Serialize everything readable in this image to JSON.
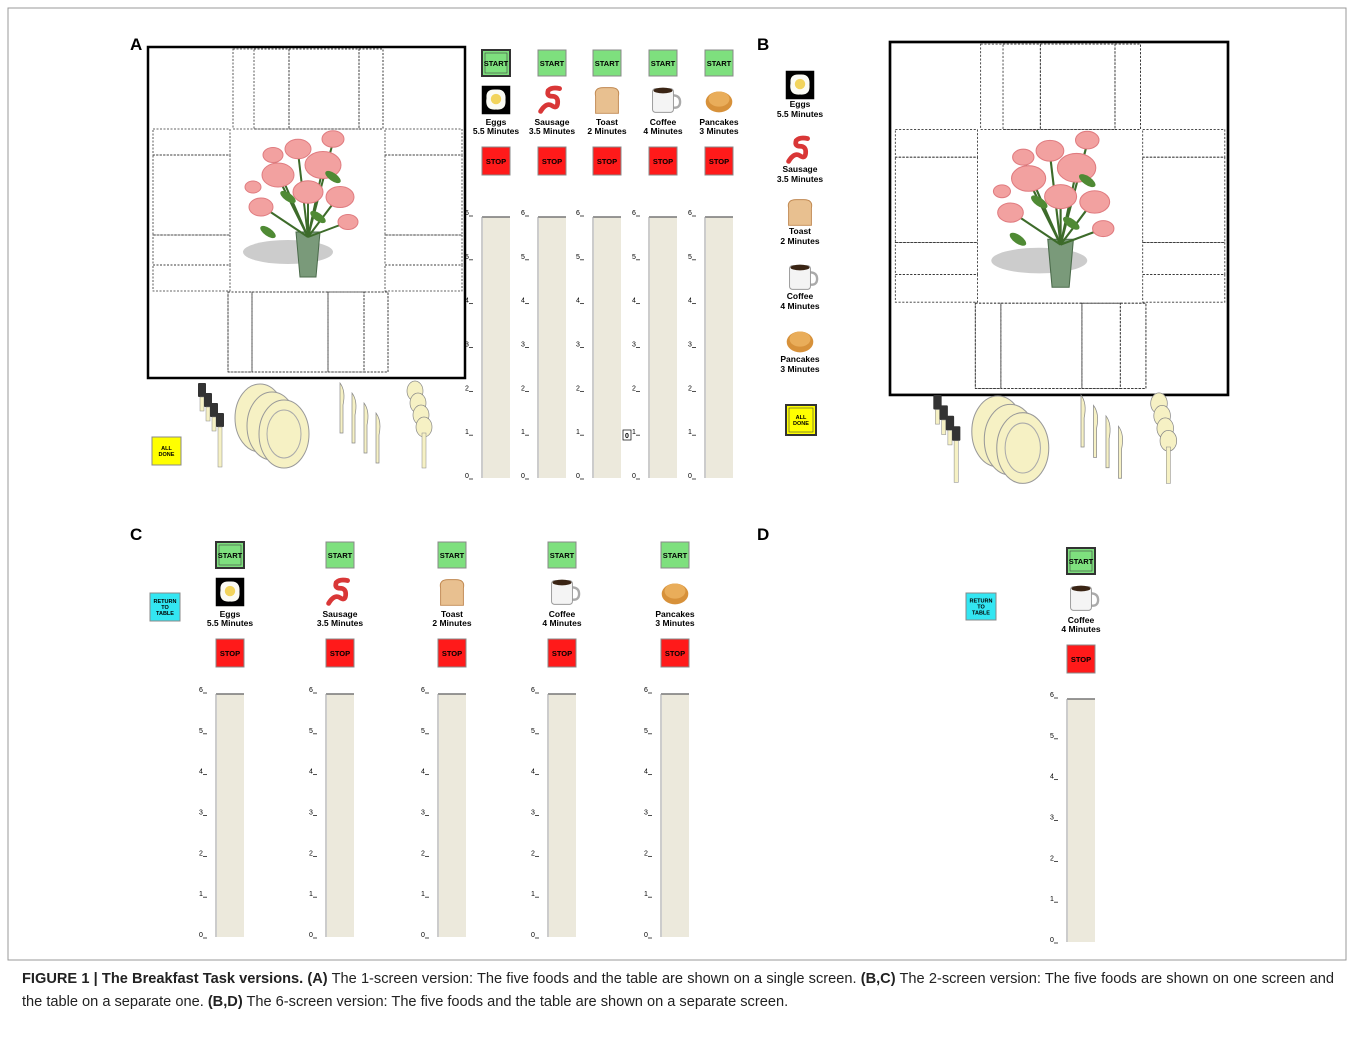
{
  "panels": {
    "a": "A",
    "b": "B",
    "c": "C",
    "d": "D"
  },
  "buttons": {
    "start": "START",
    "stop": "STOP",
    "all_done": [
      "ALL",
      "DONE"
    ],
    "return_to_table": [
      "RETURN",
      "TO",
      "TABLE"
    ]
  },
  "foods": [
    {
      "name": "Eggs",
      "time": "5.5 Minutes"
    },
    {
      "name": "Sausage",
      "time": "3.5 Minutes"
    },
    {
      "name": "Toast",
      "time": "2 Minutes"
    },
    {
      "name": "Coffee",
      "time": "4 Minutes"
    },
    {
      "name": "Pancakes",
      "time": "3 Minutes"
    }
  ],
  "gauge_ticks": [
    0,
    1,
    2,
    3,
    4,
    5,
    6
  ],
  "counter": "0",
  "caption": [
    {
      "text": "FIGURE 1 | The Breakfast Task versions.",
      "bold": true
    },
    {
      "text": " (A)",
      "bold": true
    },
    {
      "text": " The 1-screen version: The five foods and the table are shown on a single screen.",
      "bold": false
    },
    {
      "text": " (B,C)",
      "bold": true
    },
    {
      "text": " The 2-screen version: The five foods are shown on one screen and the table on a separate one.",
      "bold": false
    },
    {
      "text": " (B,D)",
      "bold": true
    },
    {
      "text": " The 6-screen version: The five foods and the table are shown on a separate screen.",
      "bold": false
    }
  ]
}
